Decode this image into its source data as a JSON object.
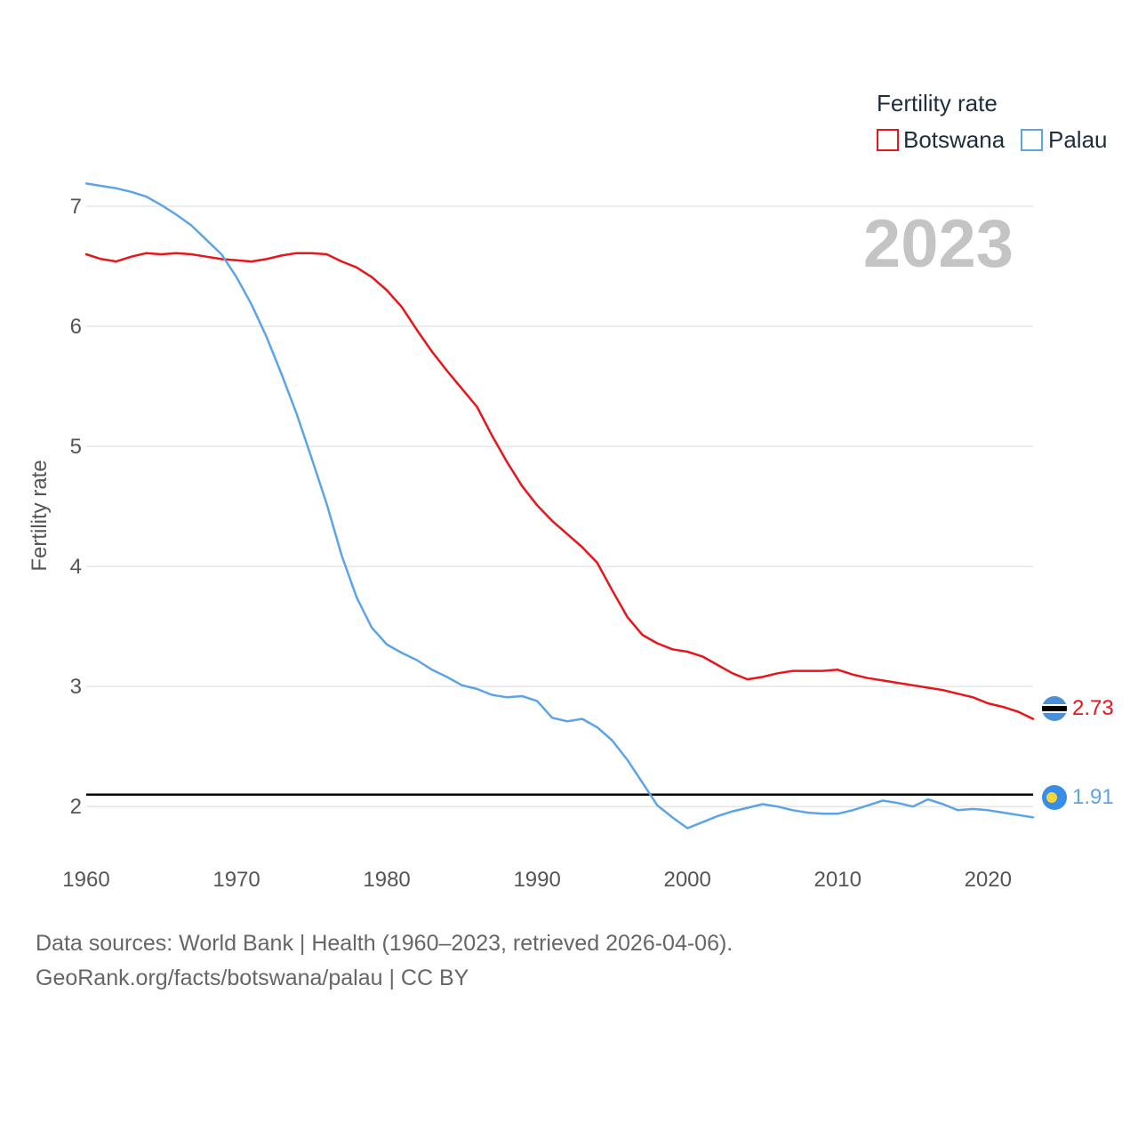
{
  "year_label": "2023",
  "source": {
    "line1": "Data sources: World Bank | Health (1960–2023, retrieved 2026-04-06).",
    "line2": "GeoRank.org/facts/botswana/palau | CC BY"
  },
  "colors": {
    "botswana": "#e8151b",
    "palau": "#5ca4e8",
    "replacement_line": "#000000",
    "grid": "#e6e6e6"
  },
  "chart_data": {
    "type": "line",
    "title": "",
    "xlabel": "",
    "ylabel": "Fertility rate",
    "legend_title": "Fertility rate",
    "legend_position": "top-right",
    "xlim": [
      1960,
      2023
    ],
    "ylim": [
      1.55,
      7.2
    ],
    "x_ticks": [
      1960,
      1970,
      1980,
      1990,
      2000,
      2010,
      2020
    ],
    "y_ticks": [
      2,
      3,
      4,
      5,
      6,
      7
    ],
    "grid": true,
    "reference_line": {
      "y": 2.1
    },
    "x": [
      1960,
      1961,
      1962,
      1963,
      1964,
      1965,
      1966,
      1967,
      1968,
      1969,
      1970,
      1971,
      1972,
      1973,
      1974,
      1975,
      1976,
      1977,
      1978,
      1979,
      1980,
      1981,
      1982,
      1983,
      1984,
      1985,
      1986,
      1987,
      1988,
      1989,
      1990,
      1991,
      1992,
      1993,
      1994,
      1995,
      1996,
      1997,
      1998,
      1999,
      2000,
      2001,
      2002,
      2003,
      2004,
      2005,
      2006,
      2007,
      2008,
      2009,
      2010,
      2011,
      2012,
      2013,
      2014,
      2015,
      2016,
      2017,
      2018,
      2019,
      2020,
      2021,
      2022,
      2023
    ],
    "series": [
      {
        "name": "Botswana",
        "color": "#e8151b",
        "end_label": "2.73",
        "values": [
          6.6,
          6.56,
          6.54,
          6.58,
          6.61,
          6.6,
          6.61,
          6.6,
          6.58,
          6.56,
          6.55,
          6.54,
          6.56,
          6.59,
          6.61,
          6.61,
          6.6,
          6.54,
          6.49,
          6.41,
          6.3,
          6.16,
          5.97,
          5.79,
          5.63,
          5.48,
          5.33,
          5.09,
          4.87,
          4.67,
          4.51,
          4.38,
          4.27,
          4.16,
          4.03,
          3.8,
          3.58,
          3.43,
          3.36,
          3.31,
          3.29,
          3.25,
          3.18,
          3.11,
          3.06,
          3.08,
          3.11,
          3.13,
          3.13,
          3.13,
          3.14,
          3.1,
          3.07,
          3.05,
          3.03,
          3.01,
          2.99,
          2.97,
          2.94,
          2.91,
          2.86,
          2.83,
          2.79,
          2.73
        ]
      },
      {
        "name": "Palau",
        "color": "#5ca4e8",
        "end_label": "1.91",
        "values": [
          7.19,
          7.17,
          7.15,
          7.12,
          7.08,
          7.01,
          6.93,
          6.84,
          6.72,
          6.6,
          6.41,
          6.18,
          5.91,
          5.6,
          5.27,
          4.9,
          4.52,
          4.09,
          3.74,
          3.49,
          3.35,
          3.28,
          3.22,
          3.14,
          3.08,
          3.01,
          2.98,
          2.93,
          2.91,
          2.92,
          2.88,
          2.74,
          2.71,
          2.73,
          2.66,
          2.55,
          2.39,
          2.2,
          2.01,
          1.91,
          1.82,
          1.87,
          1.92,
          1.96,
          1.99,
          2.02,
          2.0,
          1.97,
          1.95,
          1.94,
          1.94,
          1.97,
          2.01,
          2.05,
          2.03,
          2.0,
          2.06,
          2.02,
          1.97,
          1.98,
          1.97,
          1.95,
          1.93,
          1.91
        ]
      }
    ]
  }
}
